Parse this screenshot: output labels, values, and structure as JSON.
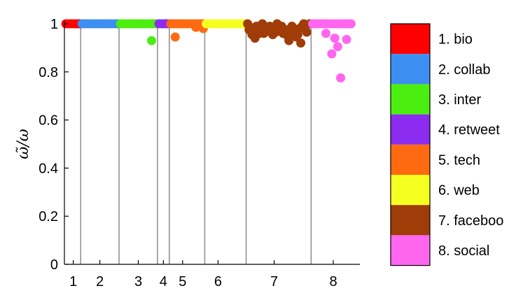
{
  "chart_data": {
    "type": "scatter",
    "ylabel": "ω̃/ω",
    "ylim": [
      0,
      1
    ],
    "y_ticks": [
      {
        "value": 0,
        "label": "0"
      },
      {
        "value": 0.2,
        "label": "0.2"
      },
      {
        "value": 0.4,
        "label": "0.4"
      },
      {
        "value": 0.6,
        "label": "0.6"
      },
      {
        "value": 0.8,
        "label": "0.8"
      },
      {
        "value": 1,
        "label": "1"
      }
    ],
    "xlim": [
      0,
      100
    ],
    "group_boundaries": [
      5.5,
      18.5,
      31.5,
      35.5,
      47.5,
      61.5,
      83.5
    ],
    "x_ticks": [
      {
        "label": "1",
        "x": 3
      },
      {
        "label": "2",
        "x": 12
      },
      {
        "label": "3",
        "x": 25
      },
      {
        "label": "4",
        "x": 33.5
      },
      {
        "label": "5",
        "x": 40
      },
      {
        "label": "6",
        "x": 52
      },
      {
        "label": "7",
        "x": 71
      },
      {
        "label": "8",
        "x": 91
      }
    ],
    "legend": [
      {
        "label": "1. bio",
        "color": "#ff0000"
      },
      {
        "label": "2. collab",
        "color": "#3c8ff0"
      },
      {
        "label": "3. inter",
        "color": "#4cee10"
      },
      {
        "label": "4. retweet",
        "color": "#8b2cf0"
      },
      {
        "label": "5. tech",
        "color": "#ff6a10"
      },
      {
        "label": "6. web",
        "color": "#f5ff20"
      },
      {
        "label": "7. faceboo",
        "color": "#a03c08"
      },
      {
        "label": "8. social",
        "color": "#ff66f0"
      }
    ],
    "series": [
      {
        "group": 1,
        "color": "#ff0000",
        "x": [
          0.5,
          1.5,
          2.5,
          3.5,
          4.5,
          5.2
        ],
        "y": [
          1,
          1,
          1,
          1,
          1,
          1
        ]
      },
      {
        "group": 2,
        "color": "#3c8ff0",
        "x": [
          6,
          7,
          8,
          9,
          10,
          11,
          12,
          13,
          14,
          15,
          16,
          17,
          18
        ],
        "y": [
          1,
          1,
          1,
          1,
          1,
          1,
          1,
          1,
          1,
          1,
          1,
          1,
          1
        ]
      },
      {
        "group": 3,
        "color": "#4cee10",
        "x": [
          19,
          20,
          21,
          22,
          23,
          24,
          25,
          26,
          27,
          28,
          29,
          30,
          31,
          29.5
        ],
        "y": [
          1,
          1,
          1,
          1,
          1,
          1,
          1,
          1,
          1,
          1,
          1,
          1,
          1,
          0.93
        ]
      },
      {
        "group": 4,
        "color": "#8b2cf0",
        "x": [
          32,
          33,
          34,
          35
        ],
        "y": [
          1,
          1,
          1,
          1
        ]
      },
      {
        "group": 5,
        "color": "#ff6a10",
        "x": [
          36,
          37,
          38,
          39,
          40,
          41,
          42,
          43,
          44,
          45,
          46,
          47,
          37.5,
          44.5,
          47
        ],
        "y": [
          1,
          1,
          1,
          1,
          1,
          1,
          1,
          1,
          1,
          1,
          1,
          1,
          0.945,
          0.985,
          0.98
        ]
      },
      {
        "group": 6,
        "color": "#f5ff20",
        "x": [
          48,
          49,
          50,
          51,
          52,
          53,
          54,
          55,
          56,
          57,
          58,
          59,
          60,
          61
        ],
        "y": [
          1,
          1,
          1,
          1,
          1,
          1,
          1,
          1,
          1,
          1,
          1,
          1,
          1,
          1
        ]
      },
      {
        "group": 7,
        "color": "#a03c08",
        "x": [
          62,
          63,
          64,
          65,
          66,
          67,
          68,
          69,
          70,
          71,
          72,
          73,
          74,
          75,
          76,
          77,
          78,
          79,
          80,
          81,
          82,
          83,
          62.5,
          63.5,
          64.5,
          65.5,
          66.5,
          67.5,
          68.5,
          69.5,
          70.5,
          71.5,
          72.5,
          73.5,
          74.5,
          75.5,
          76.5,
          77.5,
          78.5,
          79.5,
          80.5
        ],
        "y": [
          1,
          0.985,
          0.97,
          0.99,
          0.96,
          1,
          0.98,
          0.97,
          0.965,
          0.98,
          1,
          0.985,
          0.96,
          0.975,
          0.93,
          0.99,
          0.97,
          0.955,
          0.92,
          1,
          0.965,
          1,
          0.975,
          0.955,
          0.94,
          0.985,
          0.975,
          0.96,
          0.97,
          0.99,
          0.955,
          0.965,
          0.98,
          0.99,
          0.975,
          0.95,
          0.97,
          0.96,
          0.945,
          0.98,
          0.99
        ]
      },
      {
        "group": 8,
        "color": "#ff66f0",
        "x": [
          84,
          85,
          86,
          87,
          88,
          89,
          90,
          91,
          92,
          93,
          94,
          95,
          96,
          97,
          88.5,
          90.5,
          91.5,
          92.5,
          93.5,
          95.5
        ],
        "y": [
          1,
          1,
          1,
          1,
          1,
          1,
          1,
          1,
          1,
          1,
          1,
          1,
          1,
          1,
          0.96,
          0.875,
          0.94,
          0.905,
          0.775,
          0.935
        ]
      }
    ]
  }
}
